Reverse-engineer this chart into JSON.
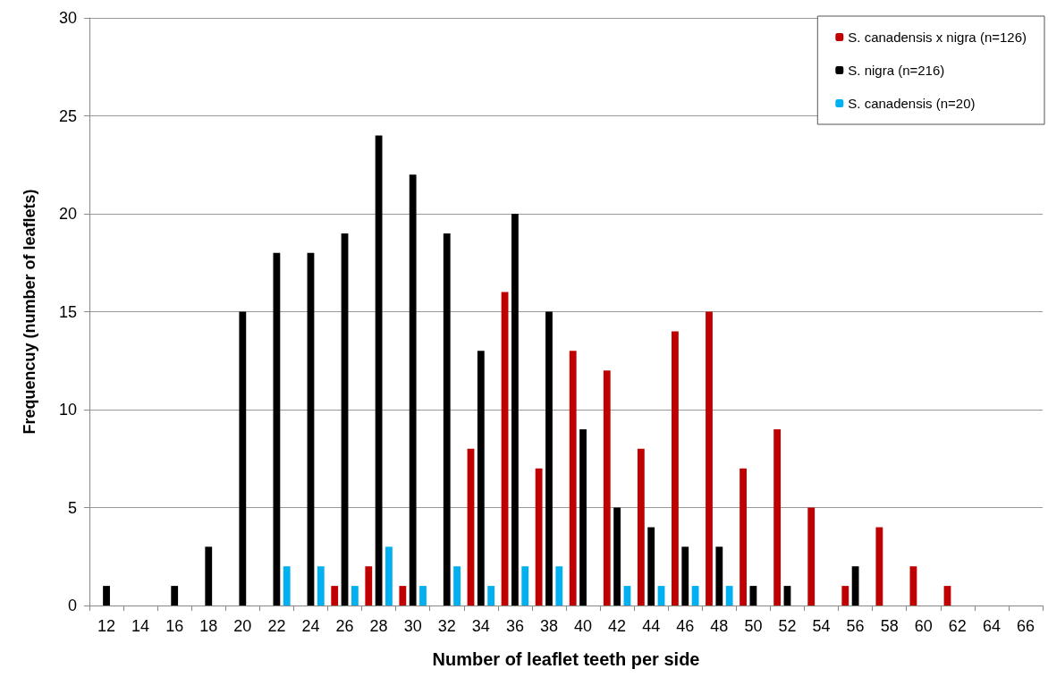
{
  "chart_data": {
    "type": "bar",
    "xlabel": "Number of leaflet teeth per side",
    "ylabel": "Frequencuy (number of leaflets)",
    "categories": [
      "12",
      "14",
      "16",
      "18",
      "20",
      "22",
      "24",
      "26",
      "28",
      "30",
      "32",
      "34",
      "36",
      "38",
      "40",
      "42",
      "44",
      "46",
      "48",
      "50",
      "52",
      "54",
      "56",
      "58",
      "60",
      "62",
      "64",
      "66"
    ],
    "series": [
      {
        "name": "S. canadensis x nigra (n=126)",
        "color": "#c00000",
        "values": [
          0,
          0,
          0,
          0,
          0,
          0,
          0,
          1,
          2,
          1,
          0,
          8,
          16,
          7,
          13,
          12,
          8,
          14,
          15,
          7,
          9,
          5,
          1,
          4,
          2,
          1,
          0,
          0
        ]
      },
      {
        "name": "S. nigra (n=216)",
        "color": "#000000",
        "values": [
          1,
          0,
          1,
          3,
          15,
          18,
          18,
          19,
          24,
          22,
          19,
          13,
          20,
          15,
          9,
          5,
          4,
          3,
          3,
          1,
          1,
          0,
          2,
          0,
          0,
          0,
          0,
          0
        ]
      },
      {
        "name": "S. canadensis (n=20)",
        "color": "#00b0f0",
        "values": [
          0,
          0,
          0,
          0,
          0,
          2,
          2,
          1,
          3,
          1,
          2,
          1,
          2,
          2,
          0,
          1,
          1,
          1,
          1,
          0,
          0,
          0,
          0,
          0,
          0,
          0,
          0,
          0
        ]
      }
    ],
    "ylim": [
      0,
      30
    ],
    "yticks": [
      0,
      5,
      10,
      15,
      20,
      25,
      30
    ],
    "grid": "y",
    "legend": "top right"
  }
}
